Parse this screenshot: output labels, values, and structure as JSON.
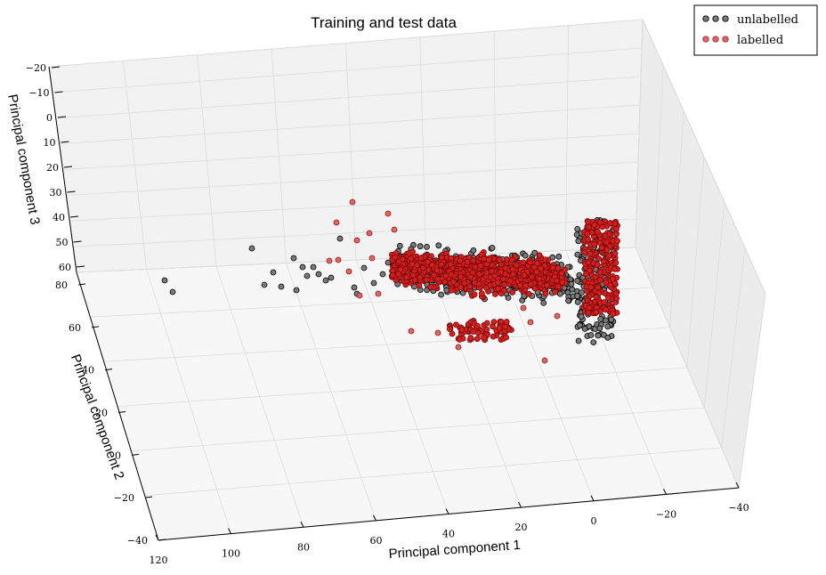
{
  "chart_data": {
    "type": "scatter",
    "projection": "3d",
    "title": "Training and test data",
    "axes": {
      "x": {
        "label": "Principal component 1",
        "ticks": [
          "120",
          "100",
          "80",
          "60",
          "40",
          "20",
          "0",
          "−20",
          "−40"
        ]
      },
      "y": {
        "label": "Principal component 2",
        "ticks": [
          "80",
          "60",
          "40",
          "20",
          "0",
          "−20",
          "−40"
        ]
      },
      "z": {
        "label": "Principal component 3",
        "ticks": [
          "−20",
          "−10",
          "0",
          "10",
          "20",
          "30",
          "40",
          "50",
          "60"
        ]
      }
    },
    "xlim": [
      -40,
      120
    ],
    "ylim": [
      -40,
      80
    ],
    "zlim": [
      -20,
      60
    ],
    "grid": true,
    "legend": {
      "placement": "top-right",
      "entries": [
        {
          "label": "unlabelled",
          "color": "#7a7a7a"
        },
        {
          "label": "labelled",
          "color": "#e06666"
        }
      ]
    },
    "series": [
      {
        "name": "unlabelled",
        "color": "#7a7a7a",
        "clusters": [
          {
            "description": "main dense cluster",
            "pc1_range": [
              10,
              50
            ],
            "pc2_range": [
              5,
              40
            ],
            "pc3_range": [
              40,
              55
            ]
          },
          {
            "description": "vertical dense band",
            "pc1_range": [
              -10,
              0
            ],
            "pc2_range": [
              0,
              50
            ],
            "pc3_range": [
              30,
              60
            ]
          },
          {
            "description": "sparse outliers",
            "pc1_range": [
              60,
              115
            ],
            "pc2_range": [
              30,
              60
            ],
            "pc3_range": [
              45,
              60
            ]
          }
        ]
      },
      {
        "name": "labelled",
        "color": "#e06666",
        "clusters": [
          {
            "description": "main dense cluster",
            "pc1_range": [
              15,
              50
            ],
            "pc2_range": [
              10,
              45
            ],
            "pc3_range": [
              40,
              55
            ]
          },
          {
            "description": "vertical dense band",
            "pc1_range": [
              -10,
              0
            ],
            "pc2_range": [
              10,
              55
            ],
            "pc3_range": [
              30,
              60
            ]
          },
          {
            "description": "lower branch",
            "pc1_range": [
              25,
              40
            ],
            "pc2_range": [
              20,
              30
            ],
            "pc3_range": [
              50,
              60
            ]
          }
        ]
      }
    ]
  }
}
